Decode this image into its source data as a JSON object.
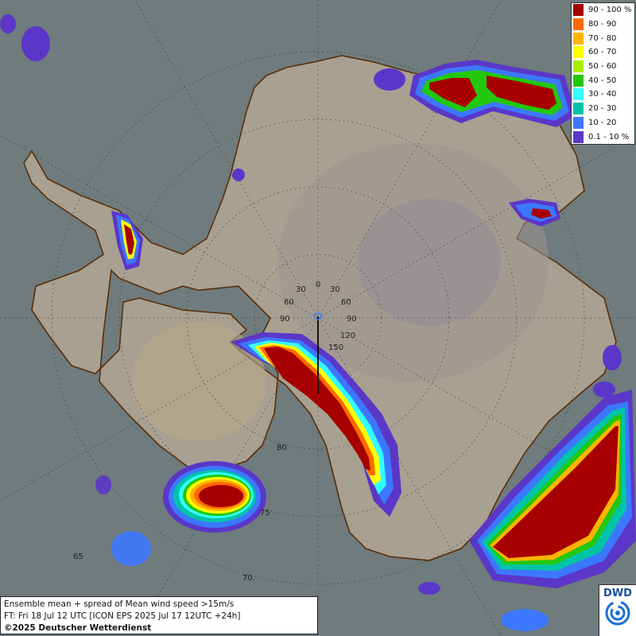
{
  "legend": {
    "items": [
      {
        "label": "90 - 100 %",
        "color": "#a60000"
      },
      {
        "label": "80 - 90",
        "color": "#ff6a00"
      },
      {
        "label": "70 - 80",
        "color": "#ffb400"
      },
      {
        "label": "60 - 70",
        "color": "#ffff00"
      },
      {
        "label": "50 - 60",
        "color": "#a8f000"
      },
      {
        "label": "40 - 50",
        "color": "#22c80e"
      },
      {
        "label": "30 - 40",
        "color": "#33ffff"
      },
      {
        "label": "20 - 30",
        "color": "#00c4a8"
      },
      {
        "label": "10 - 20",
        "color": "#3c78ff"
      },
      {
        "label": "0.1 - 10 %",
        "color": "#5a37c8"
      }
    ]
  },
  "info": {
    "line1": "Ensemble mean + spread of Mean wind speed >15m/s",
    "line2": "FT: Fri 18 Jul 12 UTC [ICON EPS 2025 Jul 17 12UTC +24h]",
    "line3": "©2025 Deutscher Wetterdienst"
  },
  "logo": {
    "text": "DWD",
    "icon": "dwd-swirl-icon"
  },
  "grid_labels": {
    "lon_0": "0",
    "lon_30w": "30",
    "lon_30e": "30",
    "lon_60w": "60",
    "lon_60e": "60",
    "lon_90w": "90",
    "lon_90e": "90",
    "lon_120": "120",
    "lon_150": "150",
    "lat_80": "80",
    "lat_75": "75",
    "lat_70": "70.",
    "lat_65": "65"
  },
  "colors": {
    "ocean": "#6f7b7c",
    "land": "#a8a090",
    "coast": "#5a2e0a"
  }
}
